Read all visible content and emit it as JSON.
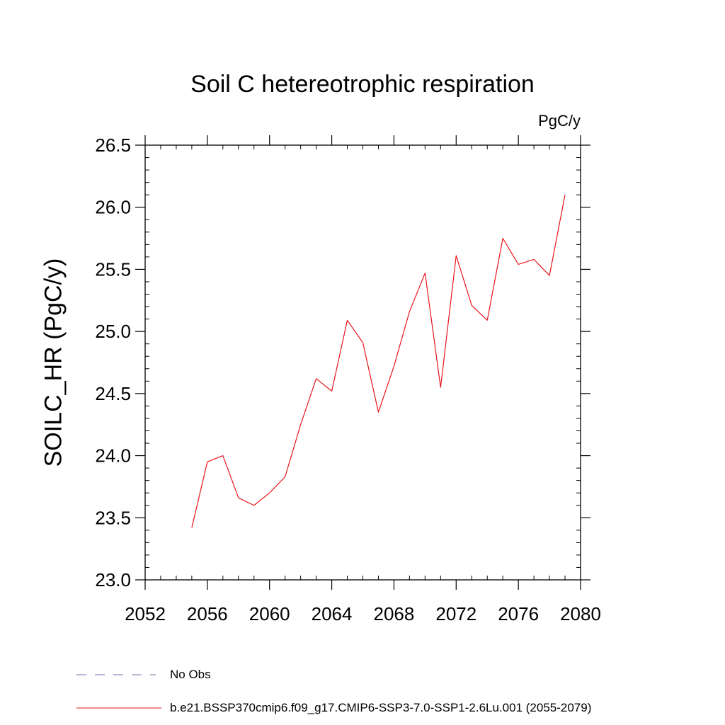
{
  "chart_data": {
    "type": "line",
    "title": "Soil C hetereotrophic respiration",
    "units": "PgC/y",
    "ylabel": "SOILC_HR  (PgC/y)",
    "xlabel": "",
    "xlim": [
      2052,
      2080
    ],
    "ylim": [
      23.0,
      26.5
    ],
    "xticks": [
      "2052",
      "2056",
      "2060",
      "2064",
      "2068",
      "2072",
      "2076",
      "2080"
    ],
    "yticks": [
      "23.0",
      "23.5",
      "24.0",
      "24.5",
      "25.0",
      "25.5",
      "26.0",
      "26.5"
    ],
    "grid": false,
    "legend_position": "bottom",
    "legend": [
      {
        "label": "No Obs",
        "color": "#7b6fb0",
        "style": "dashed"
      },
      {
        "label": "b.e21.BSSP370cmip6.f09_g17.CMIP6-SSP3-7.0-SSP1-2.6Lu.001 (2055-2079)",
        "color": "#e8141b",
        "style": "solid"
      }
    ],
    "series": [
      {
        "color": "#e8141b",
        "x": [
          2055,
          2056,
          2057,
          2058,
          2059,
          2060,
          2061,
          2062,
          2063,
          2064,
          2065,
          2066,
          2067,
          2068,
          2069,
          2070,
          2071,
          2072,
          2073,
          2074,
          2075,
          2076,
          2077,
          2078,
          2079
        ],
        "y": [
          23.42,
          23.95,
          24.0,
          23.66,
          23.6,
          23.7,
          23.83,
          24.25,
          24.62,
          24.52,
          25.09,
          24.91,
          24.35,
          24.72,
          25.16,
          25.47,
          24.55,
          25.61,
          25.21,
          25.09,
          25.75,
          25.54,
          25.58,
          25.45,
          26.1
        ]
      }
    ]
  }
}
